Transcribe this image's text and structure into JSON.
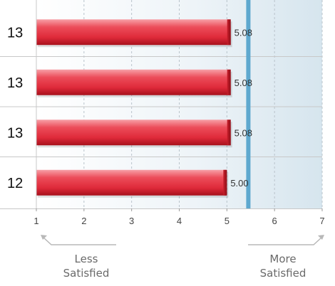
{
  "chart_data": {
    "type": "bar",
    "orientation": "horizontal",
    "categories": [
      "13",
      "13",
      "13",
      "12"
    ],
    "values": [
      5.08,
      5.08,
      5.08,
      5.0
    ],
    "data_labels": [
      "5.08",
      "5.08",
      "5.08",
      "5.00"
    ],
    "xlim": [
      1,
      7
    ],
    "x_ticks": [
      "1",
      "2",
      "3",
      "4",
      "5",
      "6",
      "7"
    ],
    "reference_line": 5.45,
    "grid": true,
    "colors": {
      "bar": "#e2303f",
      "bar_light": "#f47a84",
      "bar_dark": "#b5141f",
      "reference_line": "#5ea8cf",
      "row_border": "#c8c8c8",
      "background_left": "#ffffff",
      "background_right": "#d7e6ef"
    }
  },
  "scale_labels": {
    "left": {
      "line1": "Less",
      "line2": "Satisfied"
    },
    "right": {
      "line1": "More",
      "line2": "Satisfied"
    }
  }
}
